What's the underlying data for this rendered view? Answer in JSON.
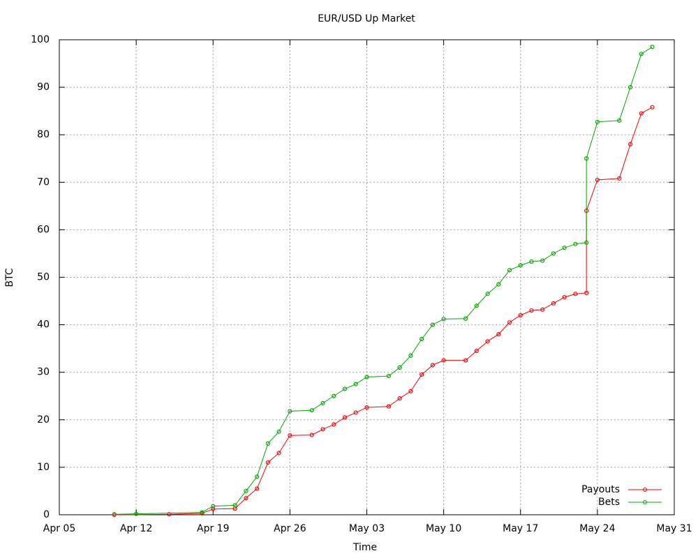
{
  "chart_data": {
    "type": "line",
    "title": "EUR/USD Up Market",
    "x_label": "Time",
    "y_label": "BTC",
    "xlim": [
      "Apr 05",
      "May 31"
    ],
    "xticks": [
      "Apr 05",
      "Apr 12",
      "Apr 19",
      "Apr 26",
      "May 03",
      "May 10",
      "May 17",
      "May 24",
      "May 31"
    ],
    "ylim": [
      0,
      100
    ],
    "yticks": [
      0,
      10,
      20,
      30,
      40,
      50,
      60,
      70,
      80,
      90,
      100
    ],
    "grid": true,
    "legend": "bottom-right",
    "series": [
      {
        "name": "Payouts",
        "color": "#ff0000",
        "x": [
          "Apr 10",
          "Apr 15",
          "Apr 18",
          "Apr 19",
          "Apr 21",
          "Apr 22",
          "Apr 23",
          "Apr 24",
          "Apr 25",
          "Apr 26",
          "Apr 28",
          "Apr 29",
          "Apr 30",
          "May 01",
          "May 02",
          "May 03",
          "May 05",
          "May 06",
          "May 07",
          "May 08",
          "May 09",
          "May 10",
          "May 12",
          "May 13",
          "May 14",
          "May 15",
          "May 16",
          "May 17",
          "May 18",
          "May 19",
          "May 20",
          "May 21",
          "May 22",
          "May 23",
          "May 23",
          "May 24",
          "May 26",
          "May 27",
          "May 28",
          "May 29"
        ],
        "values": [
          0,
          0.1,
          0.3,
          1.2,
          1.3,
          3.5,
          5.5,
          11,
          13,
          16.7,
          16.8,
          18,
          19,
          20.5,
          21.5,
          22.6,
          22.8,
          24.5,
          26,
          29.5,
          31.5,
          32.5,
          32.5,
          34.5,
          36.5,
          38,
          40.5,
          42,
          43,
          43.2,
          44.5,
          45.8,
          46.5,
          46.7,
          64,
          70.5,
          70.8,
          78,
          84.5,
          85.8
        ]
      },
      {
        "name": "Bets",
        "color": "#00aa00",
        "x": [
          "Apr 10",
          "Apr 12",
          "Apr 18",
          "Apr 19",
          "Apr 21",
          "Apr 22",
          "Apr 23",
          "Apr 24",
          "Apr 25",
          "Apr 26",
          "Apr 28",
          "Apr 29",
          "Apr 30",
          "May 01",
          "May 02",
          "May 03",
          "May 05",
          "May 06",
          "May 07",
          "May 08",
          "May 09",
          "May 10",
          "May 12",
          "May 13",
          "May 14",
          "May 15",
          "May 16",
          "May 17",
          "May 18",
          "May 19",
          "May 20",
          "May 21",
          "May 22",
          "May 23",
          "May 23",
          "May 24",
          "May 26",
          "May 27",
          "May 28",
          "May 29"
        ],
        "values": [
          0.1,
          0.2,
          0.5,
          1.8,
          2,
          5,
          8,
          15,
          17.5,
          21.8,
          22,
          23.5,
          25,
          26.5,
          27.5,
          29,
          29.2,
          31,
          33.5,
          37,
          40,
          41.2,
          41.3,
          44,
          46.5,
          48.5,
          51.5,
          52.5,
          53.3,
          53.5,
          55,
          56.2,
          57,
          57.3,
          75,
          82.7,
          83,
          90,
          97,
          98.5
        ]
      }
    ]
  }
}
